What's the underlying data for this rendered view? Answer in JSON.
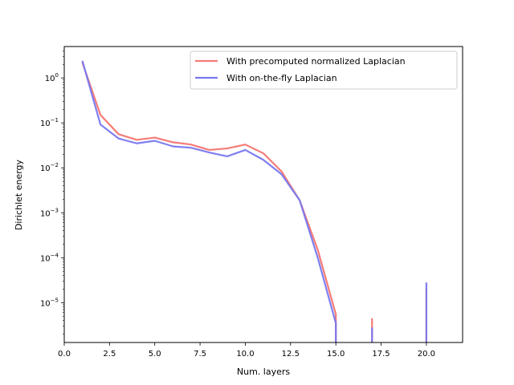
{
  "chart_data": {
    "type": "line",
    "title": "",
    "xlabel": "Num. layers",
    "ylabel": "Dirichlet energy",
    "xlim": [
      0.0,
      22.0
    ],
    "ylim": [
      1.3e-06,
      5.0
    ],
    "yscale": "log",
    "grid": false,
    "legend_position": "top-right",
    "xticks": [
      {
        "value": 0.0,
        "label": "0.0"
      },
      {
        "value": 2.5,
        "label": "2.5"
      },
      {
        "value": 5.0,
        "label": "5.0"
      },
      {
        "value": 7.5,
        "label": "7.5"
      },
      {
        "value": 10.0,
        "label": "10.0"
      },
      {
        "value": 12.5,
        "label": "12.5"
      },
      {
        "value": 15.0,
        "label": "15.0"
      },
      {
        "value": 17.5,
        "label": "17.5"
      },
      {
        "value": 20.0,
        "label": "20.0"
      }
    ],
    "yticks": [
      {
        "value": 1e-05,
        "base": "10",
        "exp": "−5"
      },
      {
        "value": 0.0001,
        "base": "10",
        "exp": "−4"
      },
      {
        "value": 0.001,
        "base": "10",
        "exp": "−3"
      },
      {
        "value": 0.01,
        "base": "10",
        "exp": "−2"
      },
      {
        "value": 0.1,
        "base": "10",
        "exp": "−1"
      },
      {
        "value": 1,
        "base": "10",
        "exp": "0"
      }
    ],
    "series": [
      {
        "name": "With precomputed normalized Laplacian",
        "color": "#f47c78",
        "segments": [
          [
            [
              1,
              2.2
            ],
            [
              2,
              0.15
            ],
            [
              3,
              0.056
            ],
            [
              4,
              0.042
            ],
            [
              5,
              0.047
            ],
            [
              6,
              0.037
            ],
            [
              7,
              0.033
            ],
            [
              8,
              0.025
            ],
            [
              9,
              0.027
            ],
            [
              10,
              0.033
            ],
            [
              11,
              0.021
            ],
            [
              12,
              0.0083
            ],
            [
              13,
              0.0019
            ],
            [
              14,
              0.00015
            ],
            [
              15,
              5.5e-06
            ],
            [
              15,
              1.3e-06
            ]
          ],
          [
            [
              17,
              4.5e-06
            ],
            [
              17,
              1.3e-06
            ]
          ],
          [
            [
              20,
              2.1e-05
            ],
            [
              20,
              1.3e-06
            ]
          ]
        ]
      },
      {
        "name": "With on-the-fly Laplacian",
        "color": "#7878f0",
        "segments": [
          [
            [
              1,
              2.4
            ],
            [
              2,
              0.092
            ],
            [
              3,
              0.045
            ],
            [
              4,
              0.035
            ],
            [
              5,
              0.04
            ],
            [
              6,
              0.03
            ],
            [
              7,
              0.028
            ],
            [
              8,
              0.022
            ],
            [
              9,
              0.018
            ],
            [
              10,
              0.025
            ],
            [
              11,
              0.015
            ],
            [
              12,
              0.0072
            ],
            [
              13,
              0.0019
            ],
            [
              14,
              0.0001
            ],
            [
              15,
              3.5e-06
            ],
            [
              15,
              1.3e-06
            ]
          ],
          [
            [
              17,
              2.8e-06
            ],
            [
              17,
              1.3e-06
            ]
          ],
          [
            [
              20,
              2.8e-05
            ],
            [
              20,
              1.3e-06
            ]
          ]
        ]
      }
    ]
  }
}
